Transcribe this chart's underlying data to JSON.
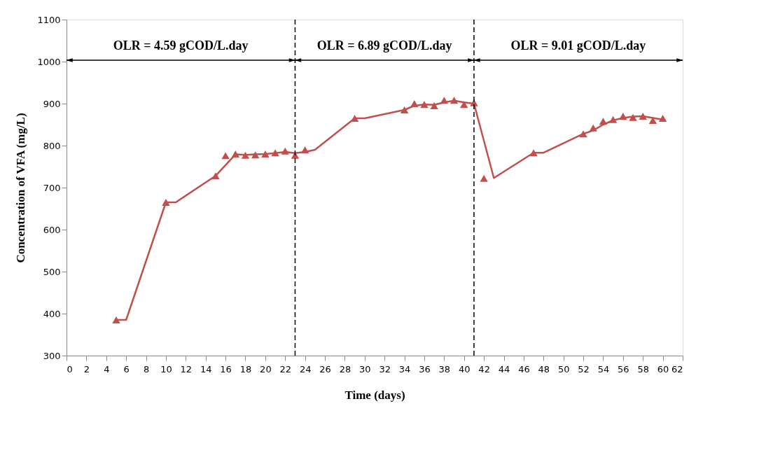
{
  "chart_data": {
    "type": "line",
    "xlabel": "Time (days)",
    "ylabel": "Concentration of VFA (mg/L)",
    "xlim": [
      0,
      62
    ],
    "xticks": [
      0,
      2,
      4,
      6,
      8,
      10,
      12,
      14,
      16,
      18,
      20,
      22,
      24,
      26,
      28,
      30,
      32,
      34,
      36,
      38,
      40,
      42,
      44,
      46,
      48,
      50,
      52,
      54,
      56,
      58,
      60,
      62
    ],
    "ylim": [
      300,
      1100
    ],
    "yticks": [
      300,
      400,
      500,
      600,
      700,
      800,
      900,
      1000,
      1100
    ],
    "grid": false,
    "series": [
      {
        "type": "scatter",
        "marker": "triangle",
        "color": "#c0504d",
        "x": [
          5,
          10,
          15,
          16,
          17,
          18,
          19,
          20,
          21,
          22,
          23,
          24,
          29,
          34,
          35,
          36,
          37,
          38,
          39,
          40,
          41,
          42,
          47,
          52,
          53,
          54,
          55,
          56,
          57,
          58,
          59,
          60
        ],
        "values": [
          385,
          665,
          728,
          776,
          780,
          777,
          778,
          780,
          783,
          787,
          777,
          790,
          865,
          885,
          900,
          898,
          895,
          908,
          908,
          898,
          902,
          722,
          783,
          828,
          842,
          858,
          862,
          870,
          867,
          870,
          860,
          865
        ]
      },
      {
        "marker": "none",
        "line_style": "solid",
        "color": "#c0504d",
        "x": [
          5,
          6,
          10,
          11,
          15,
          17,
          18,
          19,
          20,
          21,
          22,
          23,
          24,
          25,
          29,
          30,
          34,
          35,
          36,
          37,
          38,
          39,
          40,
          41,
          43,
          47,
          48,
          52,
          53,
          54,
          55,
          56,
          57,
          58,
          59,
          60
        ],
        "values": [
          385,
          385,
          665,
          665,
          728,
          779,
          778,
          779,
          780,
          782,
          785,
          782,
          785,
          790,
          865,
          865,
          885,
          895,
          898,
          897,
          903,
          907,
          903,
          900,
          723,
          783,
          783,
          828,
          836,
          850,
          860,
          866,
          869,
          870,
          866,
          862
        ]
      }
    ],
    "ref_lines": [
      {
        "axis": "x",
        "value": 23,
        "color": "#000000",
        "line_style": "dashed"
      },
      {
        "axis": "x",
        "value": 41,
        "color": "#000000",
        "line_style": "dashed"
      }
    ],
    "annotations": [
      "OLR = 4.59 gCOD/L.day",
      "OLR = 6.89 gCOD/L.day",
      "OLR = 9.01 gCOD/L.day"
    ]
  }
}
